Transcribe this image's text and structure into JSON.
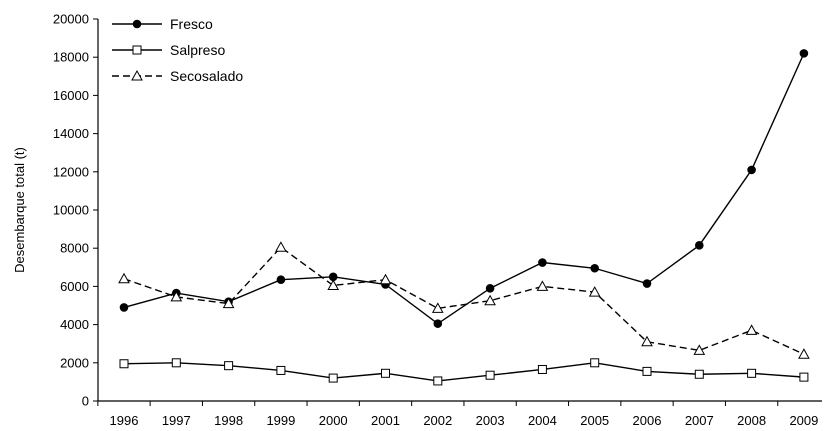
{
  "chart_data": {
    "type": "line",
    "title": "",
    "xlabel": "",
    "ylabel": "Desembarque total (t)",
    "x": [
      1996,
      1997,
      1998,
      1999,
      2000,
      2001,
      2002,
      2003,
      2004,
      2005,
      2006,
      2007,
      2008,
      2009
    ],
    "x_tick_labels": [
      "1996",
      "1997",
      "1998",
      "1999",
      "2000",
      "2001",
      "2002",
      "2003",
      "2004",
      "2005",
      "2006",
      "2007",
      "2008",
      "2009"
    ],
    "ylim": [
      0,
      20000
    ],
    "y_ticks": [
      0,
      2000,
      4000,
      6000,
      8000,
      10000,
      12000,
      14000,
      16000,
      18000,
      20000
    ],
    "y_tick_labels": [
      "0",
      "2000",
      "4000",
      "6000",
      "8000",
      "10000",
      "12000",
      "14000",
      "16000",
      "18000",
      "20000"
    ],
    "grid": false,
    "legend_position": "top-left",
    "series": [
      {
        "name": "Fresco",
        "marker": "filled-circle",
        "line_style": "solid",
        "color": "#000000",
        "values": [
          4900,
          5650,
          5200,
          6350,
          6500,
          6100,
          4050,
          5900,
          7250,
          6950,
          6150,
          8150,
          12100,
          18200
        ]
      },
      {
        "name": "Salpreso",
        "marker": "open-square",
        "line_style": "solid",
        "color": "#000000",
        "values": [
          1950,
          2000,
          1850,
          1600,
          1200,
          1450,
          1050,
          1350,
          1650,
          2000,
          1550,
          1400,
          1450,
          1250
        ]
      },
      {
        "name": "Secosalado",
        "marker": "open-triangle",
        "line_style": "dashed",
        "color": "#000000",
        "values": [
          6400,
          5450,
          5100,
          8050,
          6050,
          6350,
          4850,
          5250,
          6000,
          5700,
          3100,
          2650,
          3700,
          2450
        ]
      }
    ]
  }
}
